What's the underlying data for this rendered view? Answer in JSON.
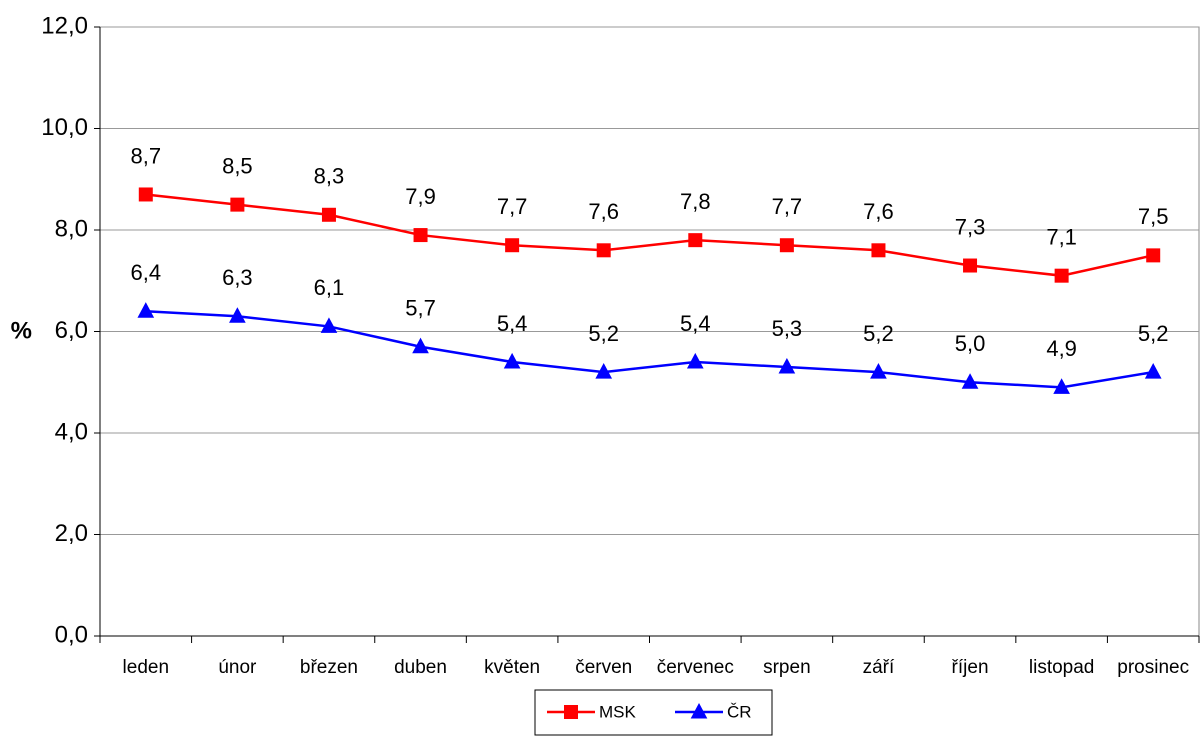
{
  "chart_data": {
    "type": "line",
    "y_label": "%",
    "categories": [
      "leden",
      "únor",
      "březen",
      "duben",
      "květen",
      "červen",
      "červenec",
      "srpen",
      "září",
      "říjen",
      "listopad",
      "prosinec"
    ],
    "series": [
      {
        "name": "MSK",
        "color": "#ff0000",
        "marker": "square",
        "values": [
          8.7,
          8.5,
          8.3,
          7.9,
          7.7,
          7.6,
          7.8,
          7.7,
          7.6,
          7.3,
          7.1,
          7.5
        ],
        "value_labels": [
          "8,7",
          "8,5",
          "8,3",
          "7,9",
          "7,7",
          "7,6",
          "7,8",
          "7,7",
          "7,6",
          "7,3",
          "7,1",
          "7,5"
        ]
      },
      {
        "name": "ČR",
        "color": "#0000ff",
        "marker": "triangle",
        "values": [
          6.4,
          6.3,
          6.1,
          5.7,
          5.4,
          5.2,
          5.4,
          5.3,
          5.2,
          5.0,
          4.9,
          5.2
        ],
        "value_labels": [
          "6,4",
          "6,3",
          "6,1",
          "5,7",
          "5,4",
          "5,2",
          "5,4",
          "5,3",
          "5,2",
          "5,0",
          "4,9",
          "5,2"
        ]
      }
    ],
    "ylim": [
      0,
      12
    ],
    "yticks": [
      {
        "value": 0,
        "label": "0,0"
      },
      {
        "value": 2,
        "label": "2,0"
      },
      {
        "value": 4,
        "label": "4,0"
      },
      {
        "value": 6,
        "label": "6,0"
      },
      {
        "value": 8,
        "label": "8,0"
      },
      {
        "value": 10,
        "label": "10,0"
      },
      {
        "value": 12,
        "label": "12,0"
      }
    ],
    "grid": true,
    "legend": "bottom"
  }
}
